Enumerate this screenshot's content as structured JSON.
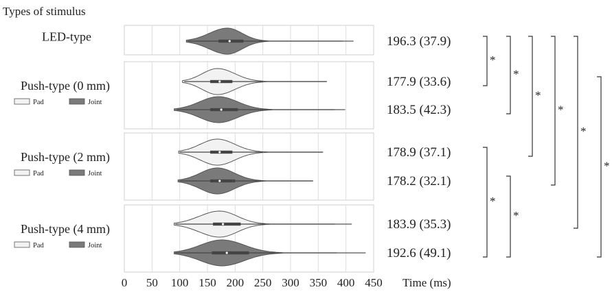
{
  "chart_data": {
    "type": "violin",
    "title": "Types of stimulus",
    "xlabel": "Time (ms)",
    "xlim": [
      0,
      450
    ],
    "xticks": [
      0,
      50,
      100,
      150,
      200,
      250,
      300,
      350,
      400,
      450
    ],
    "legend": [
      {
        "name": "Pad",
        "color": "#f2f2f2"
      },
      {
        "name": "Joint",
        "color": "#7a7a7a"
      }
    ],
    "groups": [
      {
        "name": "LED-type",
        "show_legend": false,
        "violins": [
          {
            "series": "Joint",
            "mean": 196.3,
            "sd": 37.9,
            "label": "196.3 (37.9)",
            "median": 190,
            "q1": 170,
            "q3": 215,
            "whisker": [
              115,
              255
            ],
            "min": 112,
            "max": 413,
            "mode": 186
          }
        ]
      },
      {
        "name": "Push-type (0 mm)",
        "show_legend": true,
        "violins": [
          {
            "series": "Pad",
            "mean": 177.9,
            "sd": 33.6,
            "label": "177.9 (33.6)",
            "median": 172,
            "q1": 155,
            "q3": 195,
            "whisker": [
              108,
              250
            ],
            "min": 105,
            "max": 365,
            "mode": 168
          },
          {
            "series": "Joint",
            "mean": 183.5,
            "sd": 42.3,
            "label": "183.5 (42.3)",
            "median": 175,
            "q1": 155,
            "q3": 205,
            "whisker": [
              95,
              260
            ],
            "min": 90,
            "max": 398,
            "mode": 170
          }
        ]
      },
      {
        "name": "Push-type (2 mm)",
        "show_legend": true,
        "violins": [
          {
            "series": "Pad",
            "mean": 178.9,
            "sd": 37.1,
            "label": "178.9 (37.1)",
            "median": 172,
            "q1": 155,
            "q3": 195,
            "whisker": [
              100,
              250
            ],
            "min": 98,
            "max": 358,
            "mode": 168
          },
          {
            "series": "Joint",
            "mean": 178.2,
            "sd": 32.1,
            "label": "178.2 (32.1)",
            "median": 172,
            "q1": 155,
            "q3": 200,
            "whisker": [
              100,
              248
            ],
            "min": 97,
            "max": 340,
            "mode": 168
          }
        ]
      },
      {
        "name": "Push-type (4 mm)",
        "show_legend": true,
        "violins": [
          {
            "series": "Pad",
            "mean": 183.9,
            "sd": 35.3,
            "label": "183.9 (35.3)",
            "median": 178,
            "q1": 160,
            "q3": 210,
            "whisker": [
              92,
              255
            ],
            "min": 90,
            "max": 410,
            "mode": 172
          },
          {
            "series": "Joint",
            "mean": 192.6,
            "sd": 49.1,
            "label": "192.6 (49.1)",
            "median": 185,
            "q1": 158,
            "q3": 225,
            "whisker": [
              92,
              280
            ],
            "min": 90,
            "max": 435,
            "mode": 176
          }
        ]
      }
    ],
    "significance": [
      {
        "from": "196.3 (37.9)",
        "to": "177.9 (33.6)",
        "label": "*"
      },
      {
        "from": "196.3 (37.9)",
        "to": "183.5 (42.3)",
        "label": "*"
      },
      {
        "from": "196.3 (37.9)",
        "to": "178.9 (37.1)",
        "label": "*"
      },
      {
        "from": "196.3 (37.9)",
        "to": "178.2 (32.1)",
        "label": "*"
      },
      {
        "from": "196.3 (37.9)",
        "to": "183.9 (35.3)",
        "label": "*"
      },
      {
        "from": "177.9 (33.6)",
        "to": "192.6 (49.1)",
        "label": "*"
      },
      {
        "from": "178.9 (37.1)",
        "to": "192.6 (49.1)",
        "label": "*"
      },
      {
        "from": "178.2 (32.1)",
        "to": "192.6 (49.1)",
        "label": "*"
      }
    ]
  }
}
